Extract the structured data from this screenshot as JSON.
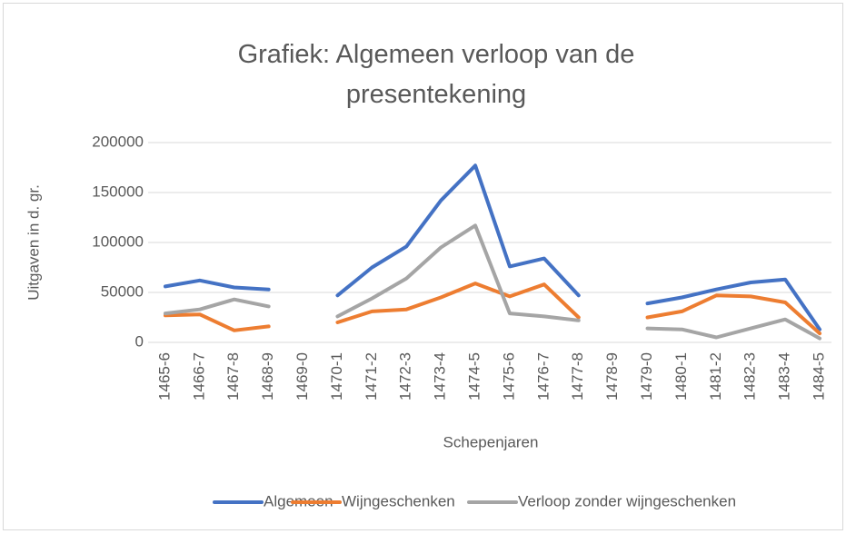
{
  "chart_data": {
    "type": "line",
    "title": "Grafiek: Algemeen verloop van de presentekening",
    "x_label": "Schepenjaren",
    "y_label": "Uitgaven in d. gr.",
    "categories": [
      "1465-6",
      "1466-7",
      "1467-8",
      "1468-9",
      "1469-0",
      "1470-1",
      "1471-2",
      "1472-3",
      "1473-4",
      "1474-5",
      "1475-6",
      "1476-7",
      "1477-8",
      "1478-9",
      "1479-0",
      "1480-1",
      "1481-2",
      "1482-3",
      "1483-4",
      "1484-5"
    ],
    "series": [
      {
        "name": "Algemeen",
        "color": "#4472c4",
        "values": [
          56000,
          62000,
          55000,
          53000,
          null,
          47000,
          75000,
          96000,
          142000,
          177000,
          76000,
          84000,
          47000,
          null,
          39000,
          45000,
          53000,
          60000,
          63000,
          13000
        ]
      },
      {
        "name": "Wijngeschenken",
        "color": "#ed7d31",
        "values": [
          27000,
          28000,
          12000,
          16000,
          null,
          20000,
          31000,
          33000,
          45000,
          59000,
          46000,
          58000,
          25000,
          null,
          25000,
          31000,
          47000,
          46000,
          40000,
          9000
        ]
      },
      {
        "name": "Verloop zonder wijngeschenken",
        "color": "#a5a5a5",
        "values": [
          29000,
          33000,
          43000,
          36000,
          null,
          26000,
          44000,
          64000,
          95000,
          117000,
          29000,
          26000,
          22000,
          null,
          14000,
          13000,
          5000,
          14000,
          23000,
          4000
        ]
      }
    ],
    "ylim": [
      0,
      200000
    ],
    "yticks": [
      0,
      50000,
      100000,
      150000,
      200000
    ],
    "grid": true,
    "legend": "bottom"
  }
}
